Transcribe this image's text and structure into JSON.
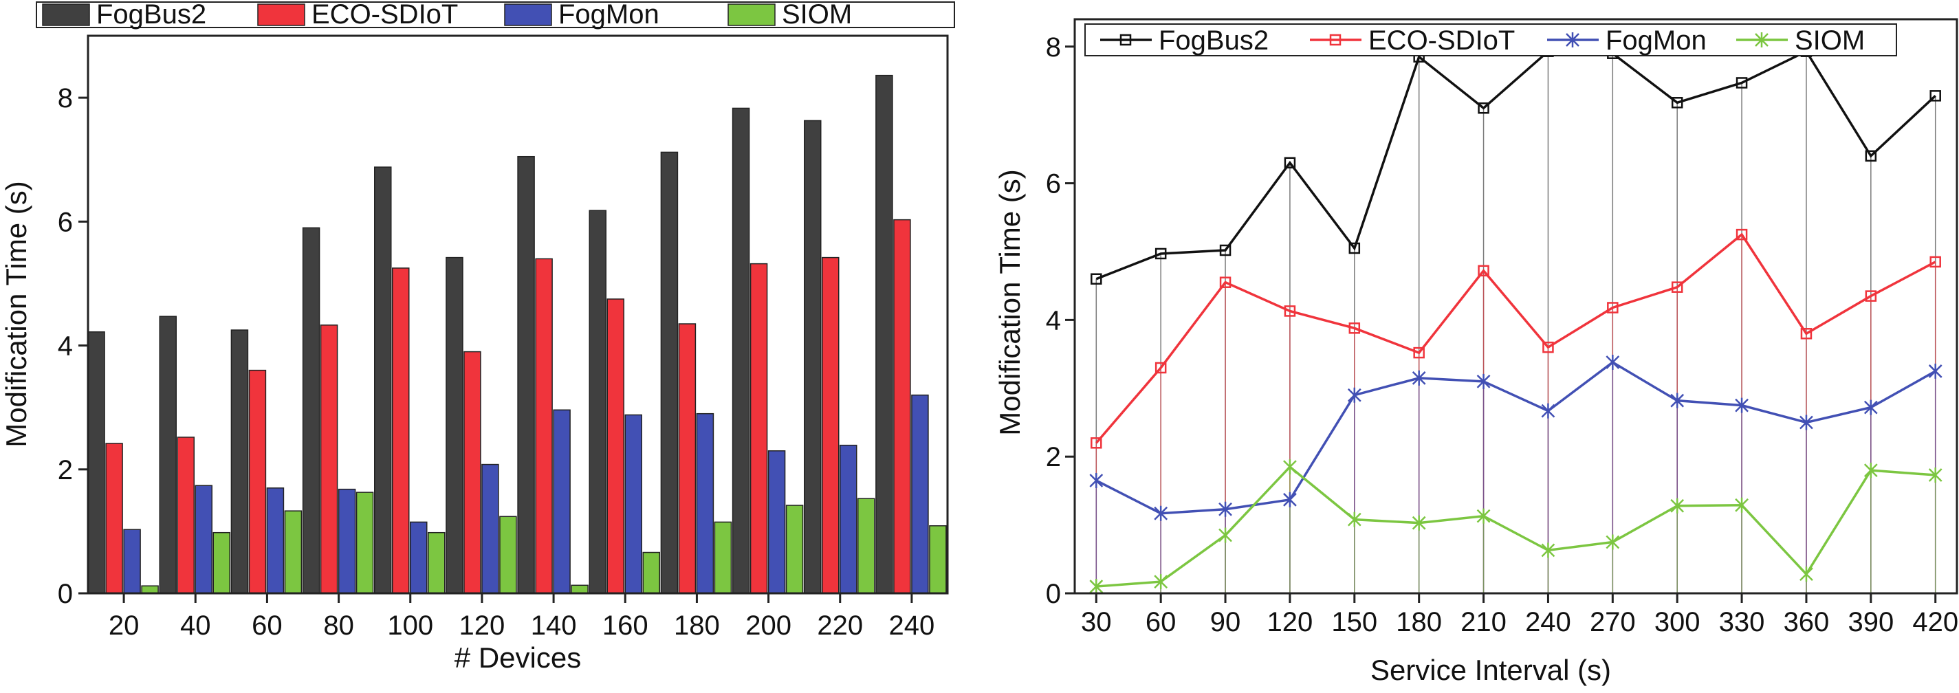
{
  "chart_data": [
    {
      "type": "bar",
      "title": "",
      "xlabel": "# Devices",
      "ylabel": "Modification Time (s)",
      "ylim": [
        0,
        9
      ],
      "yticks": [
        0,
        2,
        4,
        6,
        8
      ],
      "categories": [
        "20",
        "40",
        "60",
        "80",
        "100",
        "120",
        "140",
        "160",
        "180",
        "200",
        "220",
        "240"
      ],
      "legend_position": "top",
      "series": [
        {
          "name": "FogBus2",
          "color": "#404040",
          "values": [
            4.22,
            4.47,
            4.25,
            5.9,
            6.88,
            5.42,
            7.05,
            6.18,
            7.12,
            7.83,
            7.63,
            8.36
          ]
        },
        {
          "name": "ECO-SDIoT",
          "color": "#f0343c",
          "values": [
            2.42,
            2.52,
            3.6,
            4.33,
            5.25,
            3.9,
            5.4,
            4.75,
            4.35,
            5.32,
            5.42,
            6.03
          ]
        },
        {
          "name": "FogMon",
          "color": "#4250b4",
          "values": [
            1.03,
            1.74,
            1.7,
            1.68,
            1.15,
            2.08,
            2.96,
            2.88,
            2.9,
            2.3,
            2.39,
            3.2
          ]
        },
        {
          "name": "SIOM",
          "color": "#7cc641",
          "values": [
            0.12,
            0.98,
            1.33,
            1.63,
            0.98,
            1.24,
            0.13,
            0.66,
            1.15,
            1.42,
            1.53,
            1.09
          ]
        }
      ]
    },
    {
      "type": "line",
      "title": "",
      "xlabel": "Service Interval (s)",
      "ylabel": "Modification Time (s)",
      "xlim": [
        20,
        430
      ],
      "ylim": [
        0,
        8.4
      ],
      "yticks": [
        0,
        2,
        4,
        6,
        8
      ],
      "x": [
        30,
        60,
        90,
        120,
        150,
        180,
        210,
        240,
        270,
        300,
        330,
        360,
        390,
        420
      ],
      "legend_position": "top",
      "series": [
        {
          "name": "FogBus2",
          "color": "#111111",
          "marker": "square",
          "values": [
            4.6,
            4.97,
            5.02,
            6.3,
            5.05,
            7.85,
            7.1,
            7.93,
            7.9,
            7.18,
            7.47,
            7.93,
            6.4,
            7.28
          ]
        },
        {
          "name": "ECO-SDIoT",
          "color": "#f0343c",
          "marker": "square",
          "values": [
            2.2,
            3.3,
            4.55,
            4.13,
            3.88,
            3.52,
            4.72,
            3.6,
            4.18,
            4.48,
            5.25,
            3.8,
            4.35,
            4.85
          ]
        },
        {
          "name": "FogMon",
          "color": "#4250b4",
          "marker": "x",
          "values": [
            1.65,
            1.17,
            1.23,
            1.37,
            2.9,
            3.15,
            3.1,
            2.67,
            3.38,
            2.82,
            2.75,
            2.5,
            2.72,
            3.25
          ]
        },
        {
          "name": "SIOM",
          "color": "#7cc641",
          "marker": "x",
          "values": [
            0.1,
            0.17,
            0.85,
            1.85,
            1.08,
            1.03,
            1.13,
            0.63,
            0.75,
            1.28,
            1.29,
            0.28,
            1.8,
            1.73
          ]
        }
      ]
    }
  ]
}
